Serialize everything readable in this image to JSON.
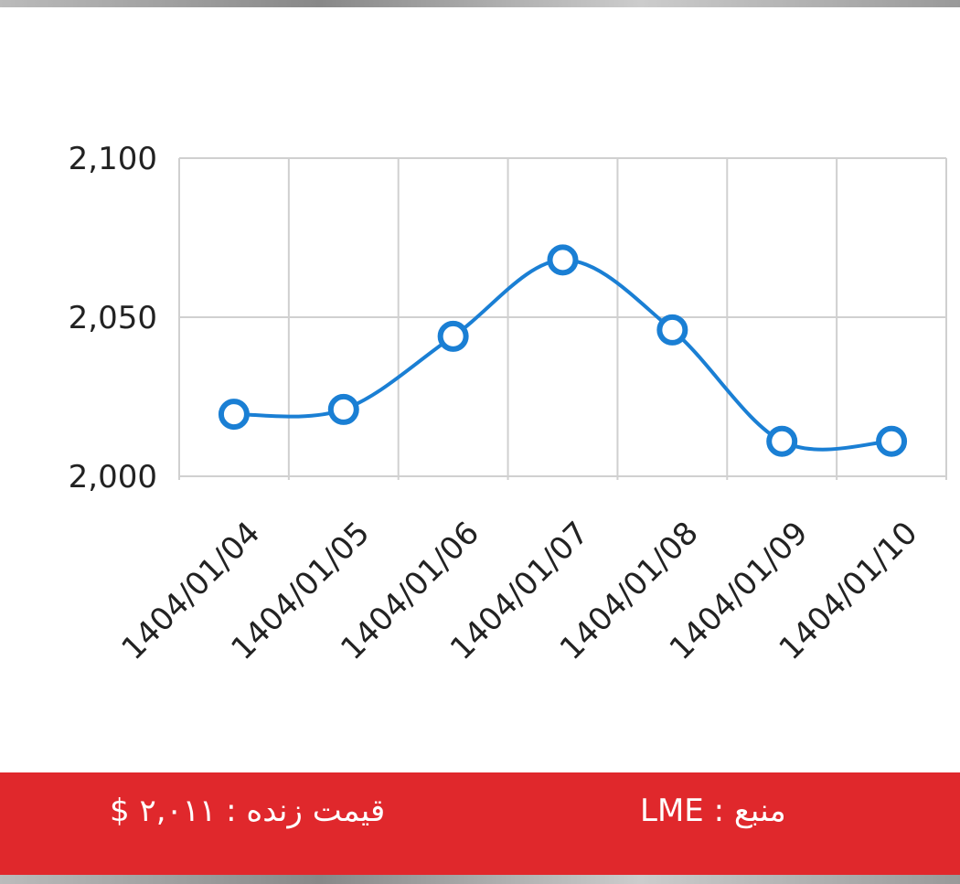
{
  "chart_data": {
    "type": "line",
    "categories": [
      "1404/01/04",
      "1404/01/05",
      "1404/01/06",
      "1404/01/07",
      "1404/01/08",
      "1404/01/09",
      "1404/01/10"
    ],
    "values": [
      2019.5,
      2021,
      2044,
      2068,
      2046,
      2011,
      2011
    ],
    "color": "#1a7fd4",
    "ylim": [
      2000,
      2100
    ],
    "yticks": [
      {
        "value": 2000,
        "label": "2,000"
      },
      {
        "value": 2050,
        "label": "2,050"
      },
      {
        "value": 2100,
        "label": "2,100"
      }
    ],
    "grid": true
  },
  "footer": {
    "live_price": "قیمت زنده : ۲,۰۱۱ $",
    "source": "منبع : LME"
  }
}
